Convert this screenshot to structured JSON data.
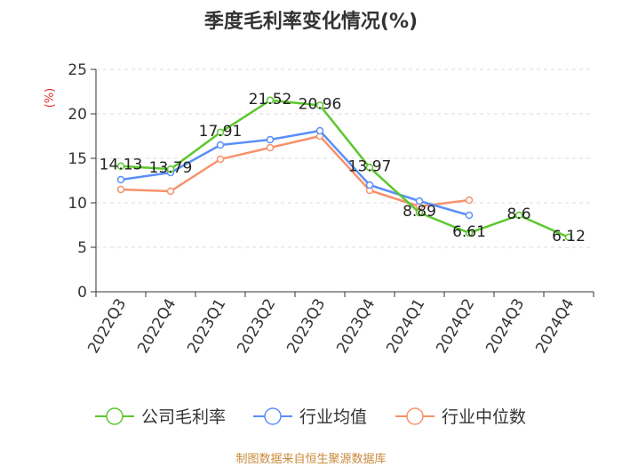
{
  "chart_data": {
    "type": "line",
    "title": "季度毛利率变化情况(%)",
    "ylabel": "(%)",
    "xlabel": "",
    "ylim": [
      0,
      25
    ],
    "yticks": [
      0,
      5,
      10,
      15,
      20,
      25
    ],
    "grid": true,
    "legend_position": "bottom",
    "categories": [
      "2022Q3",
      "2022Q4",
      "2023Q1",
      "2023Q2",
      "2023Q3",
      "2023Q4",
      "2024Q1",
      "2024Q2",
      "2024Q3",
      "2024Q4"
    ],
    "series": [
      {
        "name": "公司毛利率",
        "color": "#5cc72e",
        "values": [
          14.13,
          13.79,
          17.91,
          21.52,
          20.96,
          13.97,
          8.89,
          6.61,
          8.6,
          6.12
        ],
        "data_labels": [
          "14.13",
          "13.79",
          "17.91",
          "21.52",
          "20.96",
          "13.97",
          "8.89",
          "6.61",
          "8.6",
          "6.12"
        ]
      },
      {
        "name": "行业均值",
        "color": "#5b8ff9",
        "values": [
          12.6,
          13.4,
          16.5,
          17.1,
          18.1,
          12.0,
          10.2,
          8.6,
          null,
          null
        ]
      },
      {
        "name": "行业中位数",
        "color": "#f6926b",
        "values": [
          11.5,
          11.3,
          14.9,
          16.2,
          17.5,
          11.4,
          9.6,
          10.3,
          null,
          null
        ]
      }
    ]
  },
  "source": "制图数据来自恒生聚源数据库"
}
